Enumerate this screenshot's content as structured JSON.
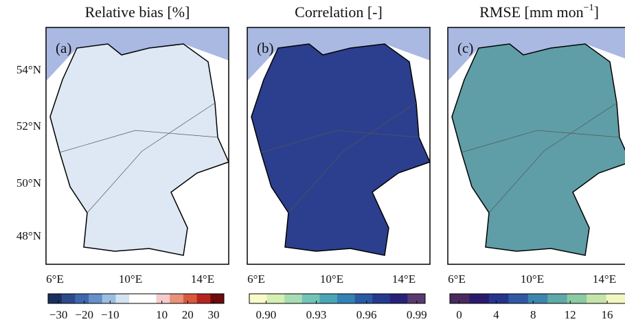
{
  "lat_labels": [
    "54°N",
    "52°N",
    "50°N",
    "48°N"
  ],
  "lon_labels": [
    "6°E",
    "10°E",
    "14°E"
  ],
  "panels": [
    {
      "title": "Relative bias [%]",
      "label": "(a)",
      "land": "#dde8f4",
      "colorbar": {
        "clim": [
          -34,
          34
        ],
        "ticks": [
          {
            "value": -30,
            "label": "−30"
          },
          {
            "value": -20,
            "label": "−20"
          },
          {
            "value": -10,
            "label": "−10"
          },
          10,
          20,
          30
        ],
        "colors": [
          "#1b2f5e",
          "#2c4a8a",
          "#3f67ad",
          "#6590c8",
          "#9dbde0",
          "#d3e3f1",
          "#ffffff",
          "#ffffff",
          "#f4cccc",
          "#e8927a",
          "#d9593c",
          "#b5251e",
          "#6b0b0b"
        ]
      }
    },
    {
      "title": "Correlation [-]",
      "label": "(b)",
      "land": "#2b3f8e",
      "colorbar": {
        "clim": [
          0.89,
          0.995
        ],
        "ticks": [
          {
            "value": 0.9,
            "label": "0.90"
          },
          0.93,
          0.96,
          0.99
        ],
        "colors": [
          "#f9fbc8",
          "#d6efb3",
          "#a7dcb5",
          "#74c3b8",
          "#4aa6b6",
          "#3282b4",
          "#2a5aa3",
          "#253a8e",
          "#272277",
          "#5a3a6e"
        ]
      }
    },
    {
      "title": "RMSE [mm mon",
      "title_sup": "−1",
      "title_end": "]",
      "label": "(c)",
      "land": "#5f9ea6",
      "colorbar": {
        "clim": [
          -1,
          18
        ],
        "ticks": [
          0,
          4,
          8,
          12,
          16
        ],
        "colors": [
          "#4a2a5c",
          "#2a1a6e",
          "#27348c",
          "#2f5aa3",
          "#3e86ad",
          "#5fa9a6",
          "#8ccaa2",
          "#c4e4a9",
          "#f2f7c2"
        ]
      }
    }
  ]
}
